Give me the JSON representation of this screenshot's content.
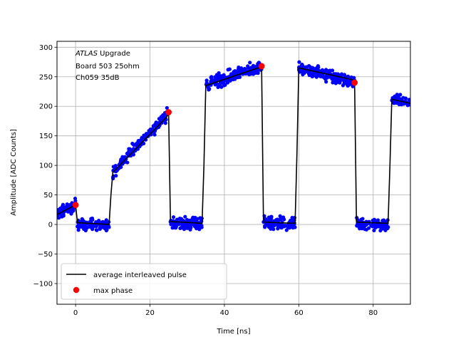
{
  "chart_data": {
    "type": "scatter",
    "title": "",
    "xlabel": "Time [ns]",
    "ylabel": "Amplitude [ADC Counts]",
    "xlim": [
      -5,
      90
    ],
    "ylim": [
      -135,
      310
    ],
    "xticks": [
      0,
      20,
      40,
      60,
      80
    ],
    "yticks": [
      -100,
      -50,
      0,
      50,
      100,
      150,
      200,
      250,
      300
    ],
    "grid": true,
    "legend_position": "lower-left",
    "annotation": {
      "italic_part": "ATLAS",
      "normal_part": " Upgrade",
      "line2": " Board 503 25ohm",
      "line3": " Ch059 35dB"
    },
    "series": [
      {
        "name": "average interleaved pulse",
        "kind": "line",
        "color": "#000000",
        "x": [
          -5,
          0,
          0.5,
          9,
          9.5,
          10,
          24.5,
          25,
          25.5,
          34,
          34.5,
          35,
          49.5,
          50,
          50.5,
          59,
          59.5,
          60,
          74.5,
          75,
          75.5,
          84,
          84.5,
          85,
          90
        ],
        "y": [
          17,
          33,
          3,
          0,
          50,
          88,
          182,
          190,
          5,
          2,
          100,
          235,
          266,
          268,
          4,
          2,
          120,
          265,
          245,
          240,
          4,
          2,
          100,
          212,
          205
        ]
      },
      {
        "name": "max phase",
        "kind": "marker",
        "color": "#ff0000",
        "x": [
          0,
          25,
          50,
          75
        ],
        "y": [
          33,
          190,
          268,
          240
        ]
      },
      {
        "name": "",
        "kind": "samples",
        "color": "#0000ff",
        "note_hidden": false,
        "segments": [
          {
            "x0": -5,
            "x1": 0,
            "y0": 17,
            "y1": 33,
            "jitter": 9,
            "n": 70
          },
          {
            "x0": 0.5,
            "x1": 9,
            "y0": 0,
            "y1": 0,
            "jitter": 8,
            "n": 110
          },
          {
            "x0": 10,
            "x1": 25,
            "y0": 88,
            "y1": 190,
            "jitter": 9,
            "n": 170
          },
          {
            "x0": 25.5,
            "x1": 34,
            "y0": 2,
            "y1": 2,
            "jitter": 9,
            "n": 110
          },
          {
            "x0": 35,
            "x1": 50,
            "y0": 235,
            "y1": 268,
            "jitter": 10,
            "n": 190
          },
          {
            "x0": 50.5,
            "x1": 59,
            "y0": 2,
            "y1": 2,
            "jitter": 9,
            "n": 110
          },
          {
            "x0": 60,
            "x1": 75,
            "y0": 266,
            "y1": 240,
            "jitter": 9,
            "n": 190
          },
          {
            "x0": 75.5,
            "x1": 84,
            "y0": 0,
            "y1": 0,
            "jitter": 9,
            "n": 110
          },
          {
            "x0": 85,
            "x1": 90,
            "y0": 215,
            "y1": 205,
            "jitter": 8,
            "n": 60
          }
        ]
      }
    ]
  }
}
